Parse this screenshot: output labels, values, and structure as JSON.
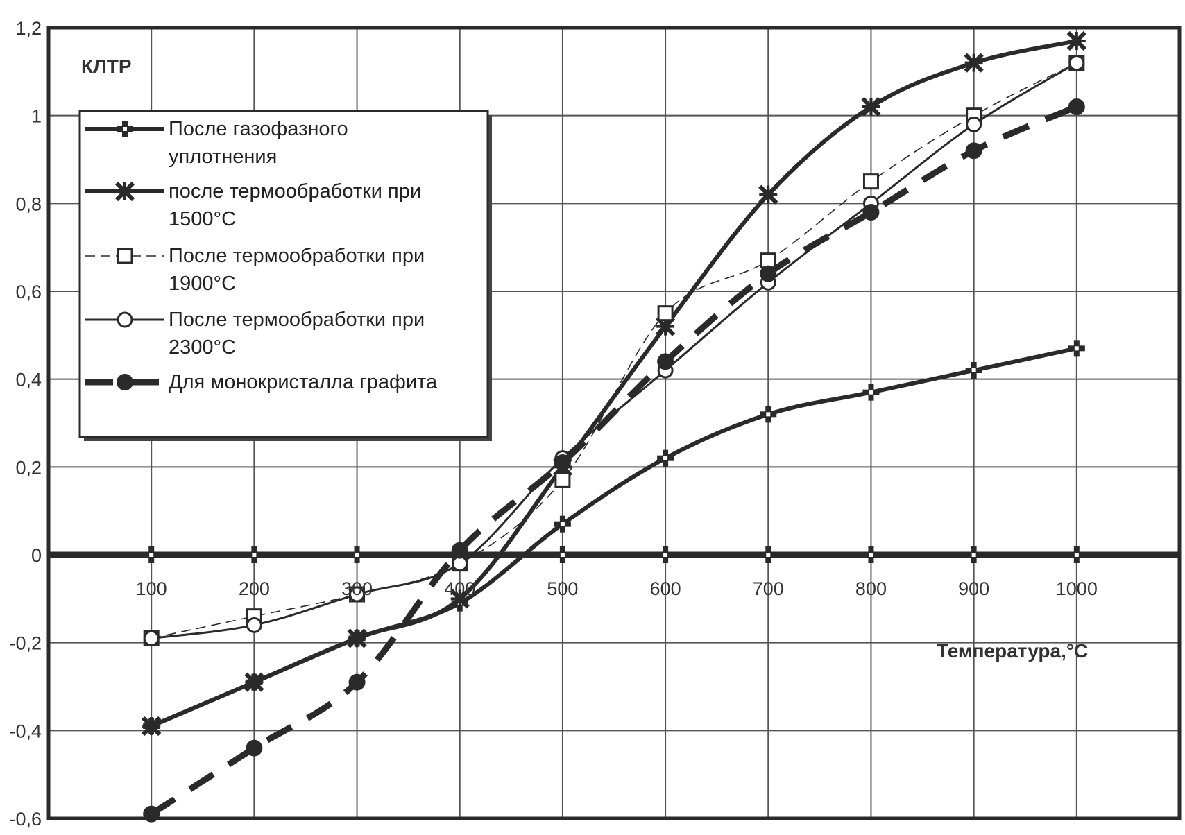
{
  "chart_data": {
    "type": "line",
    "title": "",
    "ylabel": "КЛТР",
    "xlabel": "Температура,°С",
    "x": [
      100,
      200,
      300,
      400,
      500,
      600,
      700,
      800,
      900,
      1000
    ],
    "xlim": [
      0,
      1100
    ],
    "ylim": [
      -0.6,
      1.2
    ],
    "yticks": [
      "-0,6",
      "-0,4",
      "-0,2",
      "0",
      "0,2",
      "0,4",
      "0,6",
      "0,8",
      "1",
      "1,2"
    ],
    "xticks": [
      "100",
      "200",
      "300",
      "400",
      "500",
      "600",
      "700",
      "800",
      "900",
      "1000"
    ],
    "grid": true,
    "legend_position": "top-left",
    "series": [
      {
        "name_lines": [
          "После газофазного",
          "уплотнения"
        ],
        "values": [
          -0.39,
          -0.29,
          -0.19,
          -0.11,
          0.07,
          0.22,
          0.32,
          0.37,
          0.42,
          0.47
        ],
        "marker": "cross",
        "line": "solid-thick"
      },
      {
        "name_lines": [
          "после термообработки при",
          "1500°С"
        ],
        "values": [
          -0.39,
          -0.29,
          -0.19,
          -0.1,
          0.2,
          0.52,
          0.82,
          1.02,
          1.12,
          1.17
        ],
        "marker": "star",
        "line": "solid-thick"
      },
      {
        "name_lines": [
          "После термообработки при",
          "1900°С"
        ],
        "values": [
          -0.19,
          -0.14,
          -0.09,
          -0.02,
          0.17,
          0.55,
          0.67,
          0.85,
          1.0,
          1.12
        ],
        "marker": "square",
        "line": "dashed-thin"
      },
      {
        "name_lines": [
          "После термообработки при",
          "2300°С"
        ],
        "values": [
          -0.19,
          -0.16,
          -0.09,
          -0.02,
          0.22,
          0.42,
          0.62,
          0.8,
          0.98,
          1.12
        ],
        "marker": "circle-open",
        "line": "solid-thin"
      },
      {
        "name_lines": [
          "Для монокристалла графита"
        ],
        "values": [
          -0.59,
          -0.44,
          -0.29,
          0.01,
          0.21,
          0.44,
          0.64,
          0.78,
          0.92,
          1.02
        ],
        "marker": "circle-filled",
        "line": "dashed-thick"
      }
    ],
    "colors": {
      "line": "#2a2a2a",
      "grid": "#555555",
      "background": "#ffffff"
    }
  }
}
